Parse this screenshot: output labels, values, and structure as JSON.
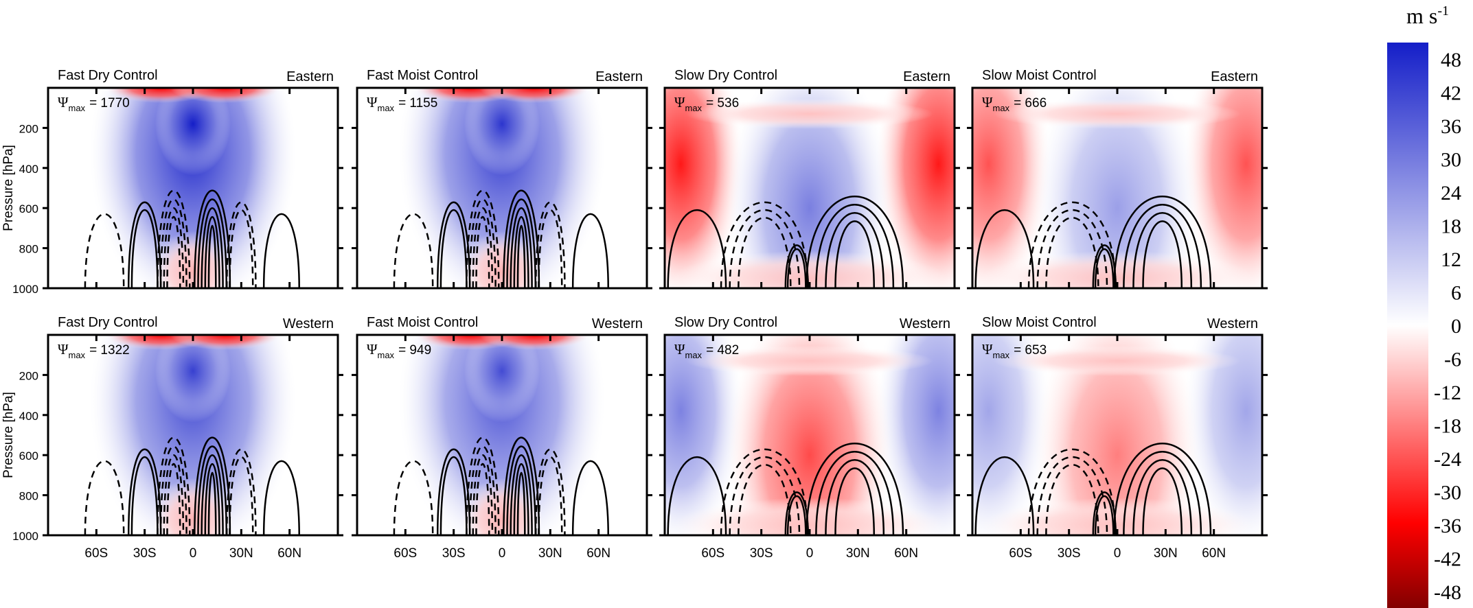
{
  "chart_data": {
    "type": "heatmap",
    "description_units": "m s-1",
    "colorbar": {
      "unit": "m s",
      "unit_exponent": "-1",
      "ticks": [
        "48",
        "42",
        "36",
        "30",
        "24",
        "18",
        "12",
        "6",
        "0",
        "-6",
        "-12",
        "-18",
        "-24",
        "-30",
        "-36",
        "-42",
        "-48"
      ],
      "vmin": -48,
      "vmax": 48
    },
    "xlabel_ticks": [
      "60S",
      "30S",
      "0",
      "30N",
      "60N"
    ],
    "x_tick_values": [
      -60,
      -30,
      0,
      30,
      60
    ],
    "xlim": [
      -90,
      90
    ],
    "ylabel": "Pressure [hPa]",
    "y_ticks": [
      "200",
      "400",
      "600",
      "800",
      "1000"
    ],
    "y_tick_values": [
      200,
      400,
      600,
      800,
      1000
    ],
    "ylim": [
      1000,
      0
    ],
    "psi_symbol": "Ψ",
    "psi_sub": "max",
    "panels": [
      {
        "title": "Fast Dry Control",
        "region": "Eastern",
        "psi_max": "1770",
        "psi_label": "= 1770",
        "regime": "fast",
        "sign": 1,
        "strength": 1.0
      },
      {
        "title": "Fast Moist Control",
        "region": "Eastern",
        "psi_max": "1155",
        "psi_label": "= 1155",
        "regime": "fast",
        "sign": 1,
        "strength": 0.9
      },
      {
        "title": "Slow Dry Control",
        "region": "Eastern",
        "psi_max": "536",
        "psi_label": "= 536",
        "regime": "slow",
        "sign": 1,
        "strength": 0.8
      },
      {
        "title": "Slow Moist Control",
        "region": "Eastern",
        "psi_max": "666",
        "psi_label": "= 666",
        "regime": "slow",
        "sign": 1,
        "strength": 0.6
      },
      {
        "title": "Fast Dry Control",
        "region": "Western",
        "psi_max": "1322",
        "psi_label": "= 1322",
        "regime": "fast",
        "sign": 1,
        "strength": 0.85
      },
      {
        "title": "Fast Moist Control",
        "region": "Western",
        "psi_max": "949",
        "psi_label": "= 949",
        "regime": "fast",
        "sign": 1,
        "strength": 0.8
      },
      {
        "title": "Slow Dry Control",
        "region": "Western",
        "psi_max": "482",
        "psi_label": "= 482",
        "regime": "slow",
        "sign": -1,
        "strength": 0.7
      },
      {
        "title": "Slow Moist Control",
        "region": "Western",
        "psi_max": "653",
        "psi_label": "= 653",
        "regime": "slow",
        "sign": -1,
        "strength": 0.5
      }
    ]
  }
}
